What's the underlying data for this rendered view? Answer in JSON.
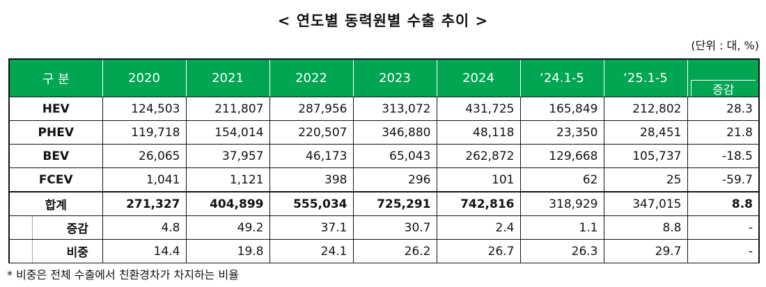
{
  "title": "< 연도별 동력원별 수출 추이 >",
  "unit": "(단위 : 대, %)",
  "columns": [
    "구 분",
    "2020",
    "2021",
    "2022",
    "2023",
    "2024",
    "‘24.1-5",
    "‘25.1-5",
    "증감"
  ],
  "rows": [
    {
      "label": "HEV",
      "values": [
        "124,503",
        "211,807",
        "287,956",
        "313,072",
        "431,725",
        "165,849",
        "212,802",
        "28.3"
      ]
    },
    {
      "label": "PHEV",
      "values": [
        "119,718",
        "154,014",
        "220,507",
        "346,880",
        "48,118",
        "23,350",
        "28,451",
        "21.8"
      ]
    },
    {
      "label": "BEV",
      "values": [
        "26,065",
        "37,957",
        "46,173",
        "65,043",
        "262,872",
        "129,668",
        "105,737",
        "-18.5"
      ]
    },
    {
      "label": "FCEV",
      "values": [
        "1,041",
        "1,121",
        "398",
        "296",
        "101",
        "62",
        "25",
        "-59.7"
      ]
    }
  ],
  "total": {
    "label": "합계",
    "values": [
      "271,327",
      "404,899",
      "555,034",
      "725,291",
      "742,816",
      "318,929",
      "347,015",
      "8.8"
    ]
  },
  "growth": {
    "label": "증감",
    "values": [
      "4.8",
      "49.2",
      "37.1",
      "30.7",
      "2.4",
      "1.1",
      "8.8",
      "-"
    ]
  },
  "share": {
    "label": "비중",
    "values": [
      "14.4",
      "19.8",
      "24.1",
      "26.2",
      "26.7",
      "26.3",
      "29.7",
      "-"
    ]
  },
  "note": "* 비중은 전체 수출에서 친환경차가 차지하는 비율",
  "colors": {
    "header_bg": "#00a651",
    "header_text": "#ffffff"
  }
}
